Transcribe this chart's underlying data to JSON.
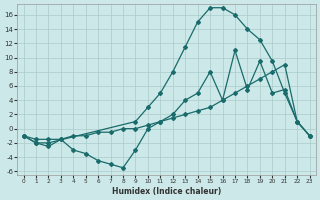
{
  "xlabel": "Humidex (Indice chaleur)",
  "background_color": "#cce8e8",
  "grid_color": "#aacaca",
  "line_color": "#1a6b6b",
  "xlim": [
    -0.5,
    23.5
  ],
  "ylim": [
    -6.5,
    17.5
  ],
  "xticks": [
    0,
    1,
    2,
    3,
    4,
    5,
    6,
    7,
    8,
    9,
    10,
    11,
    12,
    13,
    14,
    15,
    16,
    17,
    18,
    19,
    20,
    21,
    22,
    23
  ],
  "yticks": [
    -6,
    -4,
    -2,
    0,
    2,
    4,
    6,
    8,
    10,
    12,
    14,
    16
  ],
  "line_zigzag_x": [
    0,
    1,
    2,
    3,
    4,
    5,
    6,
    7,
    8,
    9,
    10,
    11,
    12,
    13,
    14,
    15,
    16,
    17,
    18,
    19,
    20,
    21,
    22,
    23
  ],
  "line_zigzag_y": [
    -1,
    -2,
    -2.5,
    -1.5,
    -3,
    -3.5,
    -4.5,
    -5,
    -5.5,
    -3,
    0,
    1,
    2,
    4,
    5,
    8,
    4,
    11,
    5.5,
    9.5,
    5,
    5.5,
    1,
    -1
  ],
  "line_linear_x": [
    0,
    1,
    2,
    3,
    4,
    5,
    6,
    7,
    8,
    9,
    10,
    11,
    12,
    13,
    14,
    15,
    16,
    17,
    18,
    19,
    20,
    21,
    22,
    23
  ],
  "line_linear_y": [
    -1,
    -1.5,
    -1.5,
    -1.5,
    -1,
    -1,
    -0.5,
    -0.5,
    0,
    0,
    0.5,
    1,
    1.5,
    2,
    2.5,
    3,
    4,
    5,
    6,
    7,
    8,
    9,
    1,
    -1
  ],
  "line_peak_x": [
    0,
    1,
    2,
    9,
    10,
    11,
    12,
    13,
    14,
    15,
    16,
    17,
    18,
    19,
    20,
    21,
    22,
    23
  ],
  "line_peak_y": [
    -1,
    -2,
    -2,
    1,
    3,
    5,
    8,
    11.5,
    15,
    17,
    17,
    16,
    14,
    12.5,
    9.5,
    5,
    1,
    -1
  ]
}
